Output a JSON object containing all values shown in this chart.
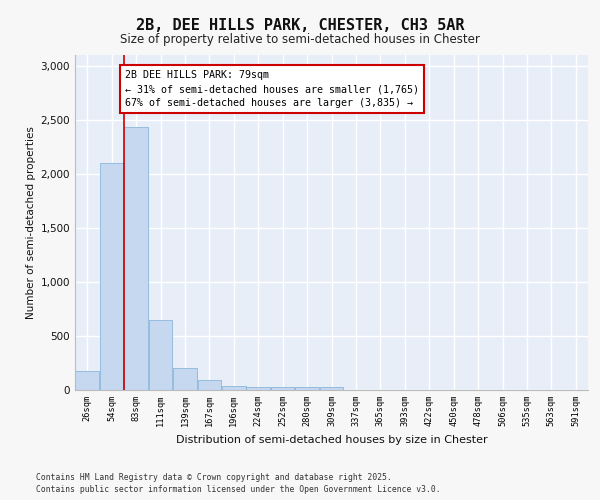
{
  "title_line1": "2B, DEE HILLS PARK, CHESTER, CH3 5AR",
  "title_line2": "Size of property relative to semi-detached houses in Chester",
  "xlabel": "Distribution of semi-detached houses by size in Chester",
  "ylabel": "Number of semi-detached properties",
  "categories": [
    "26sqm",
    "54sqm",
    "83sqm",
    "111sqm",
    "139sqm",
    "167sqm",
    "196sqm",
    "224sqm",
    "252sqm",
    "280sqm",
    "309sqm",
    "337sqm",
    "365sqm",
    "393sqm",
    "422sqm",
    "450sqm",
    "478sqm",
    "506sqm",
    "535sqm",
    "563sqm",
    "591sqm"
  ],
  "values": [
    175,
    2100,
    2430,
    650,
    200,
    90,
    40,
    30,
    25,
    25,
    25,
    0,
    0,
    0,
    0,
    0,
    0,
    0,
    0,
    0,
    0
  ],
  "bar_color": "#c5d8f0",
  "bar_edge_color": "#7badd4",
  "red_line_x": 1.5,
  "annotation_line1": "2B DEE HILLS PARK: 79sqm",
  "annotation_line2": "← 31% of semi-detached houses are smaller (1,765)",
  "annotation_line3": "67% of semi-detached houses are larger (3,835) →",
  "annotation_box_color": "#ffffff",
  "annotation_border_color": "#cc0000",
  "ylim": [
    0,
    3100
  ],
  "yticks": [
    0,
    500,
    1000,
    1500,
    2000,
    2500,
    3000
  ],
  "plot_bg_color": "#e8eef8",
  "grid_color": "#ffffff",
  "fig_bg_color": "#f7f7f7",
  "footer_line1": "Contains HM Land Registry data © Crown copyright and database right 2025.",
  "footer_line2": "Contains public sector information licensed under the Open Government Licence v3.0."
}
